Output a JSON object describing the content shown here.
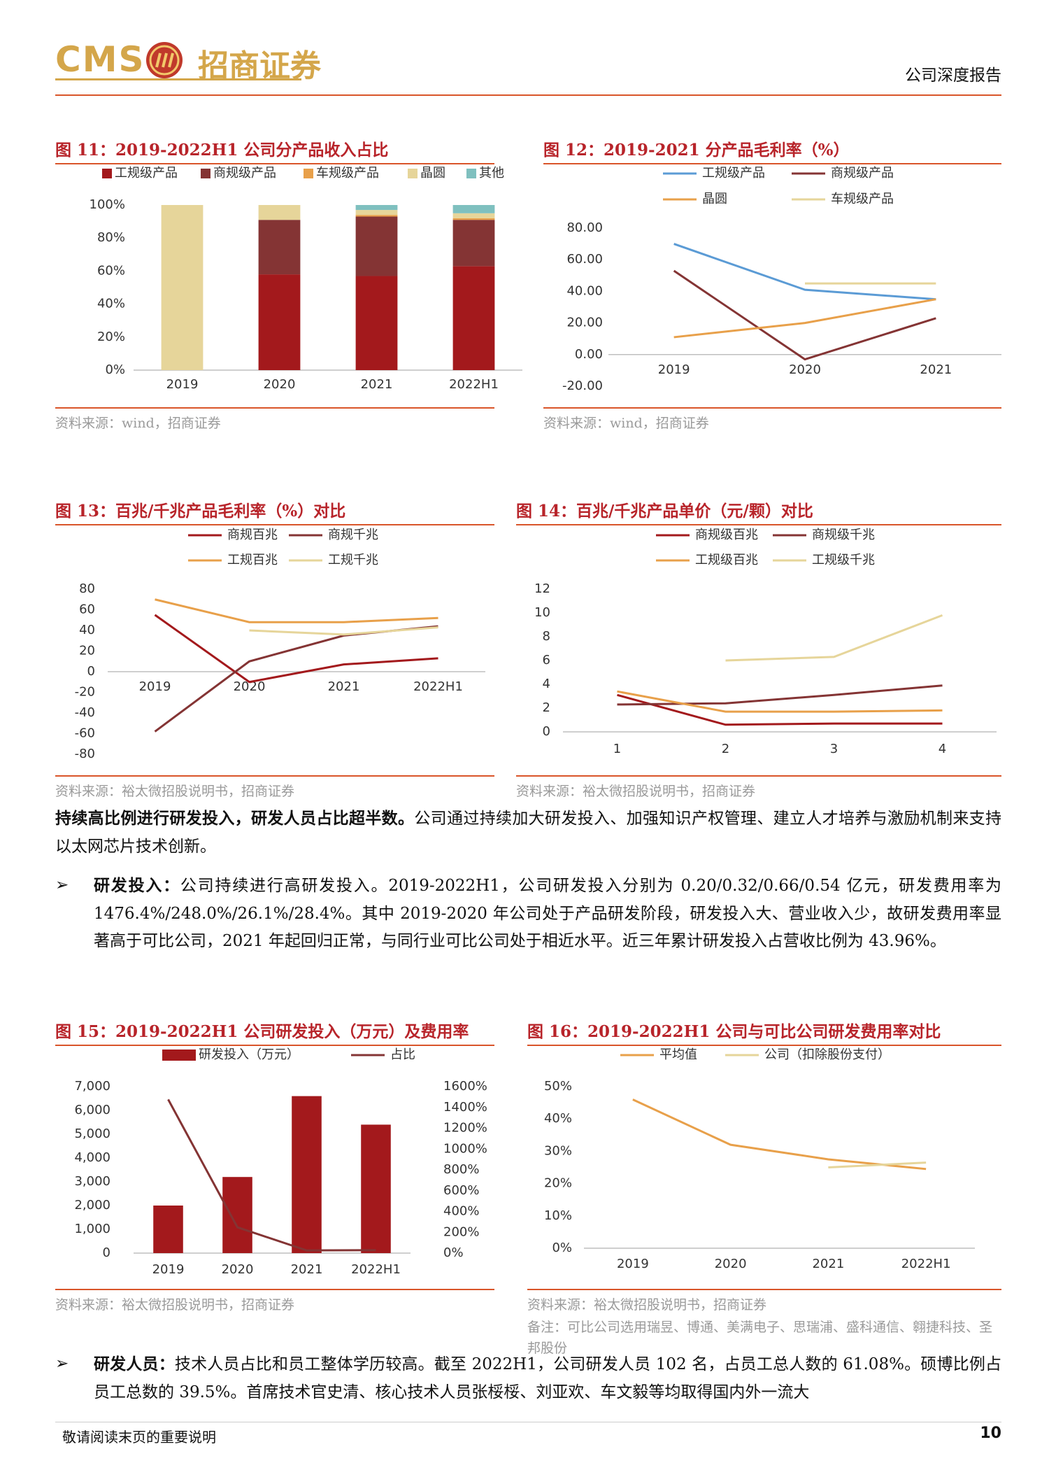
{
  "header": {
    "logo_en": "CMS",
    "logo_cn": "招商证券",
    "report_type": "公司深度报告"
  },
  "chart_data": [
    {
      "type": "bar",
      "stacked": true,
      "title": "图 11：2019-2022H1 公司分产品收入占比",
      "source": "资料来源：wind，招商证券",
      "categories": [
        "2019",
        "2020",
        "2021",
        "2022H1"
      ],
      "series": [
        {
          "name": "工规级产品",
          "color": "#a3191c",
          "values": [
            0,
            58,
            57,
            63
          ]
        },
        {
          "name": "商规级产品",
          "color": "#843434",
          "values": [
            0,
            33,
            36,
            28
          ]
        },
        {
          "name": "车规级产品",
          "color": "#e8a04a",
          "values": [
            0,
            0,
            1,
            1
          ]
        },
        {
          "name": "晶圆",
          "color": "#e6d59a",
          "values": [
            100,
            9,
            3,
            3
          ]
        },
        {
          "name": "其他",
          "color": "#7fc0bf",
          "values": [
            0,
            0,
            3,
            5
          ]
        }
      ],
      "ylim": [
        0,
        100
      ],
      "yticks": [
        {
          "value": 0,
          "label": "0%"
        },
        {
          "value": 20,
          "label": "20%"
        },
        {
          "value": 40,
          "label": "40%"
        },
        {
          "value": 60,
          "label": "60%"
        },
        {
          "value": 80,
          "label": "80%"
        },
        {
          "value": 100,
          "label": "100%"
        }
      ]
    },
    {
      "type": "line",
      "title": "图 12：2019-2021 分产品毛利率（%）",
      "source": "资料来源：wind，招商证券",
      "categories": [
        "2019",
        "2020",
        "2021"
      ],
      "series": [
        {
          "name": "工规级产品",
          "color": "#5b9bd5",
          "values": [
            70,
            41,
            35
          ]
        },
        {
          "name": "商规级产品",
          "color": "#843434",
          "values": [
            53,
            -3,
            23
          ]
        },
        {
          "name": "晶圆",
          "color": "#e8a04a",
          "values": [
            11,
            20,
            35
          ]
        },
        {
          "name": "车规级产品",
          "color": "#e6d59a",
          "values": [
            null,
            45,
            45
          ]
        }
      ],
      "ylim": [
        -20,
        80
      ],
      "yticks": [
        {
          "value": -20,
          "label": "-20.00"
        },
        {
          "value": 0,
          "label": "0.00"
        },
        {
          "value": 20,
          "label": "20.00"
        },
        {
          "value": 40,
          "label": "40.00"
        },
        {
          "value": 60,
          "label": "60.00"
        },
        {
          "value": 80,
          "label": "80.00"
        }
      ]
    },
    {
      "type": "line",
      "title": "图 13：百兆/千兆产品毛利率（%）对比",
      "source": "资料来源：裕太微招股说明书，招商证券",
      "categories": [
        "2019",
        "2020",
        "2021",
        "2022H1"
      ],
      "series": [
        {
          "name": "商规百兆",
          "color": "#a3191c",
          "values": [
            55,
            -10,
            7,
            13
          ]
        },
        {
          "name": "商规千兆",
          "color": "#843434",
          "values": [
            -58,
            10,
            35,
            44
          ]
        },
        {
          "name": "工规百兆",
          "color": "#e8a04a",
          "values": [
            70,
            48,
            48,
            52
          ]
        },
        {
          "name": "工规千兆",
          "color": "#e6d59a",
          "values": [
            null,
            40,
            36,
            43
          ]
        }
      ],
      "ylim": [
        -80,
        80
      ],
      "yticks": [
        -80,
        -60,
        -40,
        -20,
        0,
        20,
        40,
        60,
        80
      ]
    },
    {
      "type": "line",
      "title": "图 14：百兆/千兆产品单价（元/颗）对比",
      "source": "资料来源：裕太微招股说明书，招商证券",
      "categories": [
        "1",
        "2",
        "3",
        "4"
      ],
      "series": [
        {
          "name": "商规级百兆",
          "color": "#a3191c",
          "values": [
            3.1,
            0.6,
            0.7,
            0.7
          ]
        },
        {
          "name": "商规级千兆",
          "color": "#843434",
          "values": [
            2.3,
            2.4,
            3.1,
            3.9
          ]
        },
        {
          "name": "工规级百兆",
          "color": "#e8a04a",
          "values": [
            3.4,
            1.7,
            1.7,
            1.8
          ]
        },
        {
          "name": "工规级千兆",
          "color": "#e6d59a",
          "values": [
            null,
            6.0,
            6.3,
            9.8
          ]
        }
      ],
      "ylim": [
        0,
        12
      ],
      "yticks": [
        0,
        2,
        4,
        6,
        8,
        10,
        12
      ]
    },
    {
      "type": "bar",
      "title": "图 15：2019-2022H1 公司研发投入（万元）及费用率",
      "source": "资料来源：裕太微招股说明书，招商证券",
      "categories": [
        "2019",
        "2020",
        "2021",
        "2022H1"
      ],
      "series": [
        {
          "name": "研发投入（万元）",
          "color": "#a3191c",
          "values": [
            2000,
            3200,
            6600,
            5400
          ]
        },
        {
          "name": "占比",
          "color": "#843434",
          "type": "line",
          "axis": "y2",
          "values": [
            1476.4,
            248.0,
            26.1,
            28.4
          ]
        }
      ],
      "ylim": [
        0,
        7000
      ],
      "yticks": [
        0,
        {
          "value": 1000,
          "label": "1,000"
        },
        {
          "value": 2000,
          "label": "2,000"
        },
        {
          "value": 3000,
          "label": "3,000"
        },
        {
          "value": 4000,
          "label": "4,000"
        },
        {
          "value": 5000,
          "label": "5,000"
        },
        {
          "value": 6000,
          "label": "6,000"
        },
        {
          "value": 7000,
          "label": "7,000"
        }
      ],
      "y2lim": [
        0,
        1600
      ],
      "y2ticks": [
        {
          "value": 0,
          "label": "0%"
        },
        {
          "value": 200,
          "label": "200%"
        },
        {
          "value": 400,
          "label": "400%"
        },
        {
          "value": 600,
          "label": "600%"
        },
        {
          "value": 800,
          "label": "800%"
        },
        {
          "value": 1000,
          "label": "1000%"
        },
        {
          "value": 1200,
          "label": "1200%"
        },
        {
          "value": 1400,
          "label": "1400%"
        },
        {
          "value": 1600,
          "label": "1600%"
        }
      ]
    },
    {
      "type": "line",
      "title": "图 16：2019-2022H1 公司与可比公司研发费用率对比",
      "source": "资料来源：裕太微招股说明书，招商证券",
      "note": "备注：可比公司选用瑞昱、博通、美满电子、思瑞浦、盛科通信、翱捷科技、圣邦股份",
      "categories": [
        "2019",
        "2020",
        "2021",
        "2022H1"
      ],
      "series": [
        {
          "name": "平均值",
          "color": "#e8a04a",
          "values": [
            46,
            32,
            27.5,
            24.5
          ]
        },
        {
          "name": "公司（扣除股份支付）",
          "color": "#e6d59a",
          "values": [
            null,
            null,
            25,
            26.5
          ]
        }
      ],
      "ylim": [
        0,
        50
      ],
      "yticks": [
        {
          "value": 0,
          "label": "0%"
        },
        {
          "value": 10,
          "label": "10%"
        },
        {
          "value": 20,
          "label": "20%"
        },
        {
          "value": 30,
          "label": "30%"
        },
        {
          "value": 40,
          "label": "40%"
        },
        {
          "value": 50,
          "label": "50%"
        }
      ]
    }
  ],
  "body": {
    "para1": {
      "lead": "持续高比例进行研发投入，研发人员占比超半数。",
      "text": "公司通过持续加大研发投入、加强知识产权管理、建立人才培养与激励机制来支持以太网芯片技术创新。"
    },
    "bullets": [
      {
        "lead": "研发投入：",
        "text": "公司持续进行高研发投入。2019-2022H1，公司研发投入分别为 0.20/0.32/0.66/0.54 亿元，研发费用率为 1476.4%/248.0%/26.1%/28.4%。其中 2019-2020 年公司处于产品研发阶段，研发投入大、营业收入少，故研发费用率显著高于可比公司，2021 年起回归正常，与同行业可比公司处于相近水平。近三年累计研发投入占营收比例为 43.96%。"
      },
      {
        "lead": "研发人员：",
        "text": "技术人员占比和员工整体学历较高。截至 2022H1，公司研发人员 102 名，占员工总人数的 61.08%。硕博比例占员工总数的 39.5%。首席技术官史清、核心技术人员张桵桵、刘亚欢、车文毅等均取得国内外一流大"
      }
    ]
  },
  "footer": {
    "notice": "敬请阅读末页的重要说明",
    "page": "10"
  }
}
